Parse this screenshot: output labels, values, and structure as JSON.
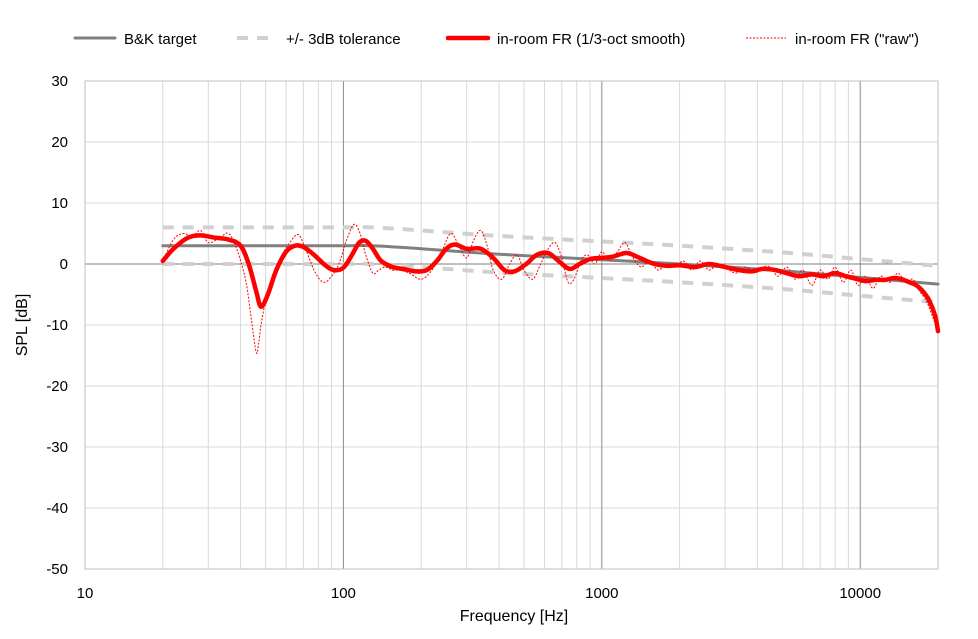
{
  "chart_data": {
    "type": "line",
    "xscale": "log",
    "xlim": [
      10,
      20000
    ],
    "ylim": [
      -50,
      30
    ],
    "xlabel": "Frequency  [Hz]",
    "ylabel": "SPL  [dB]",
    "x_ticks": [
      "10",
      "100",
      "1000",
      "10000"
    ],
    "x_tick_values": [
      10,
      100,
      1000,
      10000
    ],
    "y_ticks": [
      "30",
      "20",
      "10",
      "0",
      "-10",
      "-20",
      "-30",
      "-40",
      "-50"
    ],
    "y_tick_values": [
      30,
      20,
      10,
      0,
      -10,
      -20,
      -30,
      -40,
      -50
    ],
    "grid": "major-and-minor",
    "legend_position": "top",
    "series": [
      {
        "name": "B&K target",
        "color": "#808080",
        "style": "solid",
        "x": [
          20,
          40,
          60,
          100,
          130,
          200,
          400,
          1000,
          2000,
          5000,
          10000,
          20000
        ],
        "y": [
          3,
          3,
          3,
          3,
          3,
          2.5,
          1.6,
          0.7,
          0,
          -1.1,
          -2.2,
          -3.3
        ]
      },
      {
        "name": "+/- 3dB tolerance",
        "color": "#d0d0d0",
        "style": "dashed",
        "x": [
          20,
          40,
          60,
          100,
          130,
          200,
          400,
          1000,
          2000,
          5000,
          10000,
          20000
        ],
        "y": [
          6,
          6,
          6,
          6,
          6,
          5.5,
          4.6,
          3.7,
          3,
          1.9,
          0.8,
          -0.3
        ]
      },
      {
        "name": "",
        "color": "#d0d0d0",
        "style": "dashed",
        "x": [
          20,
          40,
          60,
          100,
          130,
          200,
          400,
          1000,
          2000,
          5000,
          10000,
          20000
        ],
        "y": [
          0,
          0,
          0,
          0,
          0,
          -0.5,
          -1.4,
          -2.3,
          -3,
          -4.1,
          -5.2,
          -6.3
        ]
      },
      {
        "name": "in-room FR (1/3-oct smooth)",
        "color": "#ff0000",
        "style": "solid-thick",
        "x": [
          20,
          22,
          25,
          28,
          32,
          36,
          40,
          43,
          46,
          48,
          51,
          55,
          60,
          65,
          70,
          77,
          85,
          92,
          100,
          108,
          115,
          122,
          130,
          140,
          155,
          170,
          190,
          210,
          230,
          250,
          270,
          300,
          340,
          380,
          420,
          460,
          510,
          560,
          620,
          680,
          750,
          820,
          900,
          1000,
          1100,
          1250,
          1400,
          1600,
          1800,
          2000,
          2300,
          2600,
          3000,
          3400,
          3800,
          4200,
          4700,
          5200,
          5800,
          6500,
          7200,
          8000,
          8800,
          9600,
          10500,
          11500,
          12500,
          13500,
          14500,
          15500,
          16500,
          17500,
          18500,
          19500,
          20000
        ],
        "y": [
          0.5,
          2.5,
          4.3,
          4.7,
          4.3,
          4,
          3,
          0,
          -4.5,
          -7,
          -5,
          -1,
          2,
          3,
          2.8,
          1.5,
          -0.2,
          -1,
          -0.6,
          1.5,
          3.5,
          3.8,
          2.5,
          0.5,
          -0.5,
          -0.8,
          -1.2,
          -1,
          0.5,
          2.5,
          3.2,
          2.5,
          2.5,
          1,
          -1,
          -1.2,
          0,
          1.5,
          1.8,
          0.5,
          -0.8,
          0,
          0.8,
          1,
          1.2,
          1.8,
          1,
          0,
          -0.3,
          -0.2,
          -0.5,
          0,
          -0.5,
          -1,
          -1.2,
          -0.8,
          -1,
          -1.5,
          -2,
          -1.7,
          -2,
          -1.5,
          -2,
          -2.4,
          -2.8,
          -2.6,
          -2.6,
          -2.3,
          -2.5,
          -3,
          -3.5,
          -4.5,
          -6,
          -8.5,
          -11
        ]
      },
      {
        "name": "in-room FR (\"raw\")",
        "color": "#ff0000",
        "style": "dashed-thin",
        "x": [
          20,
          22,
          24,
          26,
          28,
          30,
          33,
          36,
          39,
          42,
          44,
          46,
          47,
          48,
          50,
          53,
          57,
          62,
          67,
          72,
          78,
          84,
          90,
          96,
          103,
          110,
          116,
          122,
          130,
          137,
          145,
          155,
          165,
          180,
          200,
          220,
          240,
          260,
          280,
          300,
          320,
          340,
          360,
          380,
          410,
          440,
          470,
          500,
          540,
          580,
          620,
          660,
          700,
          740,
          780,
          830,
          880,
          940,
          1000,
          1070,
          1150,
          1230,
          1320,
          1420,
          1530,
          1650,
          1780,
          1920,
          2070,
          2230,
          2400,
          2600,
          2800,
          3000,
          3300,
          3600,
          3900,
          4200,
          4500,
          4800,
          5200,
          5600,
          6000,
          6500,
          7000,
          7500,
          8000,
          8600,
          9200,
          9800,
          10500,
          11200,
          12000,
          13000,
          14000,
          15000,
          16000,
          17000,
          18000,
          19000,
          20000
        ],
        "y": [
          0.5,
          4,
          5,
          4.5,
          5.5,
          3.5,
          4.2,
          5,
          2,
          -3,
          -9,
          -14.5,
          -13,
          -10,
          -6,
          -2,
          1,
          3.5,
          4.8,
          2,
          -1.5,
          -3,
          -2,
          0,
          4,
          6.5,
          5,
          1.5,
          -1.5,
          -1,
          -0.5,
          -1,
          -1,
          -1.5,
          -2.5,
          -1,
          2,
          5,
          3,
          1,
          4,
          5.5,
          3,
          -1,
          -2.5,
          0,
          1.5,
          -1,
          -2.5,
          0,
          2.5,
          3.5,
          1,
          -3,
          -2.5,
          0.5,
          1.5,
          0,
          2,
          0.5,
          2,
          3.5,
          1,
          -0.5,
          0.5,
          -1,
          0,
          -0.5,
          0.5,
          -1,
          0.5,
          -1,
          0,
          -0.5,
          -1.5,
          -0.5,
          -1.5,
          -0.5,
          -0.5,
          -2,
          -0.5,
          -2.5,
          -1,
          -3.5,
          -1,
          -2.5,
          -0.5,
          -3,
          -1,
          -3.5,
          -2,
          -4,
          -2,
          -3,
          -1.5,
          -3,
          -2.5,
          -4.5,
          -6,
          -8.5,
          -11
        ]
      }
    ]
  }
}
